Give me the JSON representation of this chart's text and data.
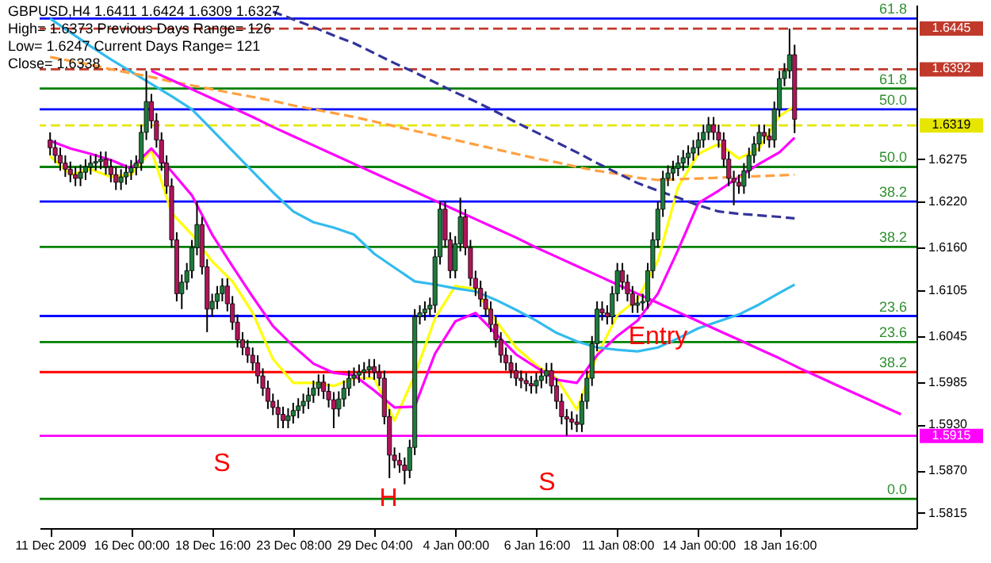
{
  "chart_data": {
    "type": "candlestick",
    "categories": [
      "11 Dec 2009",
      null,
      null,
      null,
      null,
      null,
      null,
      null,
      null,
      null,
      null,
      null,
      null,
      null,
      null,
      null,
      "16 Dec 00:00",
      null,
      null,
      null,
      null,
      null,
      null,
      null,
      null,
      null,
      null,
      null,
      null,
      null,
      null,
      null,
      "18 Dec 16:00",
      null,
      null,
      null,
      null,
      null,
      null,
      null,
      null,
      null,
      null,
      null,
      null,
      null,
      null,
      null,
      "23 Dec 08:00",
      null,
      null,
      null,
      null,
      null,
      null,
      null,
      null,
      null,
      null,
      null,
      null,
      null,
      null,
      null,
      "29 Dec 04:00",
      null,
      null,
      null,
      null,
      null,
      null,
      null,
      null,
      null,
      null,
      null,
      null,
      null,
      null,
      null,
      "4 Jan 00:00",
      null,
      null,
      null,
      null,
      null,
      null,
      null,
      null,
      null,
      null,
      null,
      null,
      null,
      null,
      null,
      "6 Jan 16:00",
      null,
      null,
      null,
      null,
      null,
      null,
      null,
      null,
      null,
      null,
      null,
      null,
      null,
      null,
      null,
      "11 Jan 08:00",
      null,
      null,
      null,
      null,
      null,
      null,
      null,
      null,
      null,
      null,
      null,
      null,
      null,
      null,
      null,
      "14 Jan 00:00",
      null,
      null,
      null,
      null,
      null,
      null,
      null,
      null,
      null,
      null,
      null,
      null,
      null,
      null,
      null,
      "18 Jan 16:00",
      null,
      null,
      null,
      null,
      null,
      null,
      null,
      null,
      null,
      null,
      null,
      null,
      null,
      null,
      null,
      null,
      null,
      null,
      null,
      null,
      null,
      null,
      null,
      null,
      null
    ],
    "ohlc": [
      [
        1.63,
        1.631,
        1.628,
        1.629
      ],
      [
        1.629,
        1.63,
        1.627,
        1.628
      ],
      [
        1.628,
        1.629,
        1.626,
        1.627
      ],
      [
        1.627,
        1.628,
        1.6252,
        1.6262
      ],
      [
        1.6262,
        1.6272,
        1.6245,
        1.6255
      ],
      [
        1.6255,
        1.6265,
        1.624,
        1.625
      ],
      [
        1.625,
        1.6268,
        1.624,
        1.6258
      ],
      [
        1.6258,
        1.6275,
        1.6248,
        1.6265
      ],
      [
        1.6265,
        1.628,
        1.6255,
        1.627
      ],
      [
        1.627,
        1.6282,
        1.626,
        1.6272
      ],
      [
        1.6272,
        1.6285,
        1.6262,
        1.6275
      ],
      [
        1.6275,
        1.6285,
        1.6255,
        1.6265
      ],
      [
        1.6265,
        1.6275,
        1.6245,
        1.6255
      ],
      [
        1.6255,
        1.6265,
        1.6235,
        1.6245
      ],
      [
        1.6245,
        1.6262,
        1.6235,
        1.6252
      ],
      [
        1.6252,
        1.6268,
        1.6242,
        1.6258
      ],
      [
        1.6258,
        1.6274,
        1.6248,
        1.6264
      ],
      [
        1.6264,
        1.628,
        1.6254,
        1.627
      ],
      [
        1.627,
        1.632,
        1.626,
        1.631
      ],
      [
        1.631,
        1.639,
        1.63,
        1.635
      ],
      [
        1.635,
        1.636,
        1.6315,
        1.6325
      ],
      [
        1.6325,
        1.6335,
        1.629,
        1.63
      ],
      [
        1.63,
        1.631,
        1.626,
        1.627
      ],
      [
        1.627,
        1.628,
        1.623,
        1.624
      ],
      [
        1.624,
        1.625,
        1.616,
        1.617
      ],
      [
        1.617,
        1.618,
        1.609,
        1.61
      ],
      [
        1.61,
        1.6125,
        1.608,
        1.6115
      ],
      [
        1.6115,
        1.614,
        1.6105,
        1.613
      ],
      [
        1.613,
        1.617,
        1.612,
        1.616
      ],
      [
        1.616,
        1.622,
        1.615,
        1.619
      ],
      [
        1.619,
        1.62,
        1.6125,
        1.6135
      ],
      [
        1.6135,
        1.6145,
        1.605,
        1.608
      ],
      [
        1.608,
        1.61,
        1.607,
        1.609
      ],
      [
        1.609,
        1.611,
        1.608,
        1.61
      ],
      [
        1.61,
        1.612,
        1.609,
        1.611
      ],
      [
        1.611,
        1.612,
        1.6077,
        1.6087
      ],
      [
        1.6087,
        1.6097,
        1.6053,
        1.6063
      ],
      [
        1.6063,
        1.6073,
        1.603,
        1.604
      ],
      [
        1.604,
        1.605,
        1.602,
        1.603
      ],
      [
        1.603,
        1.604,
        1.601,
        1.602
      ],
      [
        1.602,
        1.603,
        1.6,
        1.601
      ],
      [
        1.601,
        1.602,
        1.5983,
        1.5993
      ],
      [
        1.5993,
        1.6003,
        1.5967,
        1.5977
      ],
      [
        1.5977,
        1.5987,
        1.595,
        1.596
      ],
      [
        1.596,
        1.597,
        1.5942,
        1.5952
      ],
      [
        1.5952,
        1.5962,
        1.5925,
        1.5943
      ],
      [
        1.5943,
        1.5953,
        1.5925,
        1.5935
      ],
      [
        1.5935,
        1.5951,
        1.5925,
        1.5941
      ],
      [
        1.5941,
        1.5958,
        1.5931,
        1.5948
      ],
      [
        1.5948,
        1.5964,
        1.5938,
        1.5954
      ],
      [
        1.5954,
        1.597,
        1.5944,
        1.596
      ],
      [
        1.596,
        1.5978,
        1.595,
        1.5968
      ],
      [
        1.5968,
        1.5987,
        1.5958,
        1.5977
      ],
      [
        1.5977,
        1.5995,
        1.5967,
        1.5985
      ],
      [
        1.5985,
        1.5995,
        1.5963,
        1.5973
      ],
      [
        1.5973,
        1.5983,
        1.5952,
        1.5962
      ],
      [
        1.5962,
        1.5972,
        1.5925,
        1.595
      ],
      [
        1.595,
        1.5973,
        1.594,
        1.5963
      ],
      [
        1.5963,
        1.5987,
        1.5953,
        1.5977
      ],
      [
        1.5977,
        1.6,
        1.5967,
        1.599
      ],
      [
        1.599,
        1.6004,
        1.598,
        1.5994
      ],
      [
        1.5994,
        1.6008,
        1.5984,
        1.5998
      ],
      [
        1.5998,
        1.6011,
        1.5988,
        1.6001
      ],
      [
        1.6001,
        1.6015,
        1.5991,
        1.6005
      ],
      [
        1.6005,
        1.6015,
        1.5988,
        1.5998
      ],
      [
        1.5998,
        1.6008,
        1.598,
        1.599
      ],
      [
        1.599,
        1.6,
        1.593,
        1.594
      ],
      [
        1.594,
        1.595,
        1.586,
        1.589
      ],
      [
        1.589,
        1.59,
        1.5873,
        1.5883
      ],
      [
        1.5883,
        1.5893,
        1.5867,
        1.5877
      ],
      [
        1.5877,
        1.5887,
        1.5852,
        1.587
      ],
      [
        1.587,
        1.591,
        1.586,
        1.59
      ],
      [
        1.59,
        1.608,
        1.589,
        1.607
      ],
      [
        1.607,
        1.6085,
        1.606,
        1.6075
      ],
      [
        1.6075,
        1.609,
        1.6065,
        1.608
      ],
      [
        1.608,
        1.6095,
        1.607,
        1.6085
      ],
      [
        1.6085,
        1.6158,
        1.6075,
        1.6148
      ],
      [
        1.6148,
        1.622,
        1.6138,
        1.621
      ],
      [
        1.621,
        1.622,
        1.616,
        1.617
      ],
      [
        1.617,
        1.618,
        1.612,
        1.613
      ],
      [
        1.613,
        1.6175,
        1.612,
        1.6165
      ],
      [
        1.6165,
        1.6225,
        1.6155,
        1.62
      ],
      [
        1.62,
        1.621,
        1.615,
        1.616
      ],
      [
        1.616,
        1.617,
        1.611,
        1.612
      ],
      [
        1.612,
        1.613,
        1.6097,
        1.6107
      ],
      [
        1.6107,
        1.6117,
        1.6083,
        1.6093
      ],
      [
        1.6093,
        1.6103,
        1.607,
        1.608
      ],
      [
        1.608,
        1.609,
        1.605,
        1.606
      ],
      [
        1.606,
        1.607,
        1.603,
        1.604
      ],
      [
        1.604,
        1.605,
        1.601,
        1.602
      ],
      [
        1.602,
        1.603,
        1.6,
        1.601
      ],
      [
        1.601,
        1.602,
        1.599,
        1.6
      ],
      [
        1.6,
        1.601,
        1.598,
        1.599
      ],
      [
        1.599,
        1.6,
        1.5977,
        1.5987
      ],
      [
        1.5987,
        1.5997,
        1.5973,
        1.5983
      ],
      [
        1.5983,
        1.5993,
        1.597,
        1.598
      ],
      [
        1.598,
        1.5997,
        1.597,
        1.5987
      ],
      [
        1.5987,
        1.6003,
        1.5977,
        1.5993
      ],
      [
        1.5993,
        1.601,
        1.5983,
        1.6
      ],
      [
        1.6,
        1.601,
        1.597,
        1.598
      ],
      [
        1.598,
        1.599,
        1.595,
        1.596
      ],
      [
        1.596,
        1.597,
        1.593,
        1.594
      ],
      [
        1.594,
        1.595,
        1.5915,
        1.5937
      ],
      [
        1.5937,
        1.5947,
        1.5923,
        1.5933
      ],
      [
        1.5933,
        1.5943,
        1.592,
        1.593
      ],
      [
        1.593,
        1.597,
        1.592,
        1.596
      ],
      [
        1.596,
        1.6,
        1.595,
        1.599
      ],
      [
        1.599,
        1.6045,
        1.598,
        1.6035
      ],
      [
        1.6035,
        1.609,
        1.6025,
        1.608
      ],
      [
        1.608,
        1.609,
        1.6065,
        1.6075
      ],
      [
        1.6075,
        1.6085,
        1.606,
        1.607
      ],
      [
        1.607,
        1.611,
        1.606,
        1.61
      ],
      [
        1.61,
        1.614,
        1.609,
        1.613
      ],
      [
        1.613,
        1.614,
        1.6105,
        1.6115
      ],
      [
        1.6115,
        1.6125,
        1.609,
        1.61
      ],
      [
        1.61,
        1.611,
        1.6075,
        1.6085
      ],
      [
        1.6085,
        1.6098,
        1.6075,
        1.6088
      ],
      [
        1.6088,
        1.61,
        1.6078,
        1.609
      ],
      [
        1.609,
        1.614,
        1.608,
        1.613
      ],
      [
        1.613,
        1.618,
        1.612,
        1.617
      ],
      [
        1.617,
        1.622,
        1.616,
        1.621
      ],
      [
        1.621,
        1.626,
        1.62,
        1.625
      ],
      [
        1.625,
        1.6267,
        1.624,
        1.6257
      ],
      [
        1.6257,
        1.6273,
        1.6247,
        1.6263
      ],
      [
        1.6263,
        1.628,
        1.6253,
        1.627
      ],
      [
        1.627,
        1.6287,
        1.626,
        1.6277
      ],
      [
        1.6277,
        1.6293,
        1.6267,
        1.6283
      ],
      [
        1.6283,
        1.63,
        1.6273,
        1.629
      ],
      [
        1.629,
        1.631,
        1.628,
        1.63
      ],
      [
        1.63,
        1.632,
        1.629,
        1.631
      ],
      [
        1.631,
        1.633,
        1.63,
        1.632
      ],
      [
        1.632,
        1.633,
        1.63,
        1.631
      ],
      [
        1.631,
        1.632,
        1.629,
        1.63
      ],
      [
        1.63,
        1.631,
        1.6265,
        1.6275
      ],
      [
        1.6275,
        1.6285,
        1.624,
        1.625
      ],
      [
        1.625,
        1.626,
        1.6215,
        1.6245
      ],
      [
        1.6245,
        1.6255,
        1.623,
        1.624
      ],
      [
        1.624,
        1.627,
        1.623,
        1.626
      ],
      [
        1.626,
        1.629,
        1.625,
        1.628
      ],
      [
        1.628,
        1.6305,
        1.627,
        1.6295
      ],
      [
        1.6295,
        1.632,
        1.6285,
        1.631
      ],
      [
        1.631,
        1.632,
        1.6295,
        1.6305
      ],
      [
        1.6305,
        1.6315,
        1.629,
        1.63
      ],
      [
        1.63,
        1.635,
        1.629,
        1.634
      ],
      [
        1.634,
        1.639,
        1.633,
        1.638
      ],
      [
        1.638,
        1.64,
        1.637,
        1.639
      ],
      [
        1.639,
        1.6445,
        1.638,
        1.6411
      ],
      [
        1.6411,
        1.6424,
        1.6309,
        1.6327
      ],
      null,
      null,
      null,
      null,
      null,
      null,
      null,
      null,
      null,
      null,
      null,
      null,
      null,
      null,
      null,
      null,
      null,
      null,
      null,
      null,
      null,
      null
    ],
    "series": [
      {
        "type": "line",
        "color": "#ffff00",
        "values": [
          1.6279,
          null,
          null,
          null,
          1.6255,
          null,
          null,
          null,
          1.6262,
          null,
          null,
          null,
          1.6252,
          null,
          null,
          null,
          1.6255,
          null,
          null,
          null,
          1.6287,
          null,
          null,
          null,
          1.6205,
          null,
          null,
          null,
          1.6177,
          null,
          null,
          null,
          1.6142,
          null,
          null,
          null,
          1.6116,
          null,
          null,
          null,
          1.6075,
          null,
          null,
          null,
          1.6015,
          null,
          null,
          null,
          1.5984,
          null,
          null,
          null,
          1.5984,
          null,
          null,
          null,
          1.598,
          null,
          null,
          null,
          1.599,
          null,
          null,
          null,
          1.599,
          null,
          null,
          null,
          1.5935,
          null,
          null,
          null,
          1.5994,
          null,
          null,
          null,
          1.6068,
          null,
          null,
          null,
          1.611,
          null,
          null,
          null,
          1.6106,
          null,
          null,
          null,
          1.6065,
          null,
          null,
          null,
          1.603,
          null,
          null,
          null,
          1.6007,
          null,
          null,
          null,
          1.599,
          null,
          null,
          null,
          1.5949,
          null,
          null,
          null,
          1.602,
          null,
          null,
          null,
          1.6072,
          null,
          null,
          null,
          1.6093,
          null,
          null,
          null,
          1.6143,
          null,
          null,
          null,
          1.6239,
          null,
          null,
          null,
          1.6282,
          null,
          null,
          null,
          1.6295,
          null,
          null,
          null,
          1.6276,
          null,
          null,
          null,
          1.6289,
          null,
          null,
          null,
          1.6331,
          null,
          null,
          1.6344,
          null,
          null,
          null,
          null,
          null,
          null,
          null,
          null,
          null,
          null,
          null,
          null,
          null,
          null,
          null,
          null,
          null,
          null,
          null,
          null,
          null,
          null
        ]
      },
      {
        "type": "line",
        "color": "#ff00ff",
        "values": [
          1.6299,
          null,
          null,
          null,
          1.6289,
          null,
          null,
          null,
          1.6282,
          null,
          null,
          null,
          1.6274,
          null,
          null,
          null,
          1.6263,
          null,
          null,
          null,
          1.6289,
          null,
          null,
          null,
          1.6259,
          null,
          null,
          null,
          1.6228,
          null,
          null,
          null,
          1.6177,
          null,
          null,
          null,
          1.6136,
          null,
          null,
          null,
          1.6096,
          null,
          null,
          null,
          1.6058,
          null,
          null,
          null,
          1.6032,
          null,
          null,
          null,
          1.6009,
          null,
          null,
          null,
          1.5997,
          null,
          null,
          null,
          1.5994,
          null,
          null,
          null,
          1.5974,
          null,
          null,
          null,
          1.5952,
          null,
          null,
          null,
          1.5953,
          null,
          null,
          null,
          1.6022,
          null,
          null,
          null,
          1.6064,
          null,
          null,
          null,
          1.6075,
          null,
          null,
          null,
          1.6048,
          null,
          null,
          null,
          1.6021,
          null,
          null,
          null,
          1.6004,
          null,
          null,
          null,
          1.5988,
          null,
          null,
          null,
          1.5984,
          null,
          null,
          null,
          1.602,
          null,
          null,
          null,
          1.6045,
          null,
          null,
          null,
          1.6065,
          null,
          null,
          null,
          1.61,
          null,
          null,
          null,
          1.6157,
          null,
          null,
          null,
          1.6218,
          null,
          null,
          null,
          1.6234,
          null,
          null,
          null,
          1.6252,
          null,
          null,
          null,
          1.6269,
          null,
          null,
          null,
          1.6284,
          null,
          null,
          1.6303,
          null,
          null,
          null,
          null,
          null,
          null,
          null,
          null,
          null,
          null,
          null,
          null,
          null,
          null,
          null,
          null,
          null,
          null,
          null,
          null,
          null,
          null
        ]
      },
      {
        "type": "line",
        "color": "#33bbee",
        "values": [
          1.6458,
          null,
          null,
          null,
          1.644,
          null,
          null,
          null,
          1.6422,
          null,
          null,
          null,
          1.6405,
          null,
          null,
          null,
          1.6389,
          null,
          null,
          null,
          1.6373,
          null,
          null,
          null,
          1.6357,
          null,
          null,
          null,
          1.634,
          null,
          null,
          null,
          1.6313,
          null,
          null,
          null,
          1.6286,
          null,
          null,
          null,
          1.6259,
          null,
          null,
          null,
          1.6232,
          null,
          null,
          null,
          1.6207,
          null,
          null,
          null,
          1.6193,
          null,
          null,
          null,
          1.6186,
          null,
          null,
          null,
          1.6177,
          null,
          null,
          null,
          1.6152,
          null,
          null,
          null,
          1.6134,
          null,
          null,
          null,
          1.6116,
          null,
          null,
          null,
          1.6112,
          null,
          null,
          null,
          1.6107,
          null,
          null,
          null,
          1.6103,
          null,
          null,
          null,
          1.6092,
          null,
          null,
          null,
          1.6079,
          null,
          null,
          null,
          1.6065,
          null,
          null,
          null,
          1.6049,
          null,
          null,
          null,
          1.6038,
          null,
          null,
          null,
          1.603,
          null,
          null,
          null,
          1.6027,
          null,
          null,
          null,
          1.6025,
          null,
          null,
          null,
          1.603,
          null,
          null,
          null,
          1.6042,
          null,
          null,
          null,
          1.6055,
          null,
          null,
          null,
          1.6064,
          null,
          null,
          null,
          1.6073,
          null,
          null,
          null,
          1.6086,
          null,
          null,
          null,
          1.6101,
          null,
          null,
          1.6112,
          null,
          null,
          null,
          null,
          null,
          null,
          null,
          null,
          null,
          null,
          null,
          null,
          null,
          null,
          null,
          null,
          null,
          null,
          null,
          null,
          null,
          null
        ]
      },
      {
        "type": "line",
        "color": "#ffa040",
        "line_style": "dashed",
        "values": [
          1.6408,
          null,
          null,
          null,
          1.6403,
          null,
          null,
          null,
          1.6398,
          null,
          null,
          null,
          1.6392,
          null,
          null,
          null,
          1.6387,
          null,
          null,
          null,
          1.6382,
          null,
          null,
          null,
          1.6376,
          null,
          null,
          null,
          1.6371,
          null,
          null,
          null,
          1.6366,
          null,
          null,
          null,
          1.6361,
          null,
          null,
          null,
          1.6356,
          null,
          null,
          null,
          1.6351,
          null,
          null,
          null,
          1.6345,
          null,
          null,
          null,
          1.634,
          null,
          null,
          null,
          1.6335,
          null,
          null,
          null,
          1.633,
          null,
          null,
          null,
          1.6324,
          null,
          null,
          null,
          1.6318,
          null,
          null,
          null,
          1.6312,
          null,
          null,
          null,
          1.6306,
          null,
          null,
          null,
          1.63,
          null,
          null,
          null,
          1.6294,
          null,
          null,
          null,
          1.6288,
          null,
          null,
          null,
          1.6282,
          null,
          null,
          null,
          1.6276,
          null,
          null,
          null,
          1.6271,
          null,
          null,
          null,
          1.6265,
          null,
          null,
          null,
          1.626,
          null,
          null,
          null,
          1.6256,
          null,
          null,
          null,
          1.6251,
          null,
          null,
          null,
          1.6248,
          null,
          null,
          null,
          1.6249,
          null,
          null,
          null,
          1.625,
          null,
          null,
          null,
          1.6251,
          null,
          null,
          null,
          1.6252,
          null,
          null,
          null,
          1.6253,
          null,
          null,
          null,
          1.6254,
          null,
          null,
          1.6255,
          null,
          null,
          null,
          null,
          null,
          null,
          null,
          null,
          null,
          null,
          null,
          null,
          null,
          null,
          null,
          null,
          null,
          null,
          null,
          null,
          null,
          null
        ]
      },
      {
        "type": "line",
        "color": "#333399",
        "line_style": "dashed",
        "values": [
          null,
          null,
          null,
          null,
          null,
          null,
          null,
          null,
          null,
          null,
          null,
          null,
          null,
          null,
          null,
          null,
          null,
          null,
          null,
          null,
          null,
          null,
          null,
          null,
          null,
          null,
          null,
          null,
          null,
          null,
          null,
          null,
          null,
          null,
          null,
          null,
          null,
          null,
          null,
          null,
          null,
          null,
          null,
          null,
          1.6467,
          null,
          null,
          null,
          1.6457,
          null,
          null,
          null,
          1.6447,
          null,
          null,
          null,
          1.6436,
          null,
          null,
          null,
          1.6426,
          null,
          null,
          null,
          1.6413,
          null,
          null,
          null,
          1.64,
          null,
          null,
          null,
          1.6388,
          null,
          null,
          null,
          1.6375,
          null,
          null,
          null,
          1.6362,
          null,
          null,
          null,
          1.635,
          null,
          null,
          null,
          1.6337,
          null,
          null,
          null,
          1.6323,
          null,
          null,
          null,
          1.631,
          null,
          null,
          null,
          1.6297,
          null,
          null,
          null,
          1.6284,
          null,
          null,
          null,
          1.627,
          null,
          null,
          null,
          1.6257,
          null,
          null,
          null,
          1.6244,
          null,
          null,
          null,
          1.6234,
          null,
          null,
          null,
          1.6225,
          null,
          null,
          null,
          1.6215,
          null,
          null,
          null,
          1.6207,
          null,
          null,
          null,
          1.6204,
          null,
          null,
          null,
          1.6202,
          null,
          null,
          null,
          1.62,
          null,
          null,
          1.6198,
          null,
          null,
          null,
          null,
          null,
          null,
          null,
          null,
          null,
          null,
          null,
          null,
          null,
          null,
          null,
          null,
          null,
          null,
          null,
          null,
          null,
          null
        ]
      },
      {
        "type": "line",
        "color": "#ff00ff",
        "values": [
          null,
          null,
          null,
          null,
          null,
          null,
          null,
          null,
          null,
          null,
          null,
          null,
          null,
          null,
          null,
          null,
          null,
          null,
          null,
          null,
          1.639,
          null,
          null,
          null,
          1.6378,
          null,
          null,
          null,
          1.6366,
          null,
          null,
          null,
          1.6354,
          null,
          null,
          null,
          1.6342,
          null,
          null,
          null,
          1.633,
          null,
          null,
          null,
          1.6317,
          null,
          null,
          null,
          1.6305,
          null,
          null,
          null,
          1.6293,
          null,
          null,
          null,
          1.6281,
          null,
          null,
          null,
          1.6269,
          null,
          null,
          null,
          1.6257,
          null,
          null,
          null,
          1.6245,
          null,
          null,
          null,
          1.6233,
          null,
          null,
          null,
          1.6221,
          null,
          null,
          null,
          1.6209,
          null,
          null,
          null,
          1.6197,
          null,
          null,
          null,
          1.6185,
          null,
          null,
          null,
          1.6173,
          null,
          null,
          null,
          1.616,
          null,
          null,
          null,
          1.6148,
          null,
          null,
          null,
          1.6136,
          null,
          null,
          null,
          1.6124,
          null,
          null,
          null,
          1.6112,
          null,
          null,
          null,
          1.61,
          null,
          null,
          null,
          1.6088,
          null,
          null,
          null,
          1.6076,
          null,
          null,
          null,
          1.6064,
          null,
          null,
          null,
          1.6052,
          null,
          null,
          null,
          1.604,
          null,
          null,
          null,
          1.6028,
          null,
          null,
          null,
          1.6016,
          null,
          null,
          null,
          1.6003,
          null,
          null,
          null,
          1.5991,
          null,
          null,
          null,
          1.5979,
          null,
          null,
          null,
          1.5967,
          null,
          null,
          null,
          1.5955,
          null,
          null,
          null,
          1.5943,
          null
        ]
      }
    ],
    "ylim": [
      1.5795,
      1.6476
    ],
    "yticks": [
      {
        "value": 1.5815,
        "label": "1.5815"
      },
      {
        "value": 1.587,
        "label": "1.5870"
      },
      {
        "value": 1.593,
        "label": "1.5930"
      },
      {
        "value": 1.5985,
        "label": "1.5985"
      },
      {
        "value": 1.6045,
        "label": "1.6045"
      },
      {
        "value": 1.6105,
        "label": "1.6105"
      },
      {
        "value": 1.616,
        "label": "1.6160"
      },
      {
        "value": 1.622,
        "label": "1.6220"
      },
      {
        "value": 1.6275,
        "label": "1.6275"
      }
    ],
    "grid": false,
    "ref_lines": [
      {
        "axis": "y",
        "value": 1.6458,
        "color": "#0000ff",
        "line_style": "solid"
      },
      {
        "axis": "y",
        "value": 1.6445,
        "label": "1.6445",
        "color": "#c0392b",
        "line_style": "dashed"
      },
      {
        "axis": "y",
        "value": 1.6392,
        "label": "1.6392",
        "color": "#c0392b",
        "line_style": "dashed"
      },
      {
        "axis": "y",
        "value": 1.6367,
        "color": "#008000",
        "line_style": "solid"
      },
      {
        "axis": "y",
        "value": 1.634,
        "color": "#0000ff",
        "line_style": "solid"
      },
      {
        "axis": "y",
        "value": 1.6319,
        "label": "1.6319",
        "color": "#e6e600",
        "line_style": "dashed"
      },
      {
        "axis": "y",
        "value": 1.6265,
        "color": "#008000",
        "line_style": "solid"
      },
      {
        "axis": "y",
        "value": 1.622,
        "color": "#0000ff",
        "line_style": "solid"
      },
      {
        "axis": "y",
        "value": 1.6161,
        "color": "#008000",
        "line_style": "solid"
      },
      {
        "axis": "y",
        "value": 1.6071,
        "color": "#0000ff",
        "line_style": "solid"
      },
      {
        "axis": "y",
        "value": 1.6037,
        "color": "#008000",
        "line_style": "solid"
      },
      {
        "axis": "y",
        "value": 1.5998,
        "color": "#ff0000",
        "line_style": "solid"
      },
      {
        "axis": "y",
        "value": 1.5915,
        "label": "1.5915",
        "color": "#ff00ff",
        "line_style": "solid"
      },
      {
        "axis": "y",
        "value": 1.5833,
        "color": "#008000",
        "line_style": "solid"
      }
    ],
    "annotations": [
      "GBPUSD,H4  1.6411 1.6424 1.6309 1.6327",
      "High= 1.6373    Previous Days Range= 126",
      "Low= 1.6247    Current Days Range= 121",
      "Close= 1.6338",
      "S",
      "H",
      "S",
      "Entry",
      {
        "text": "61.8",
        "y": 1.6458
      },
      {
        "text": "61.8",
        "y": 1.6367
      },
      {
        "text": "50.0",
        "y": 1.634
      },
      {
        "text": "50.0",
        "y": 1.6265
      },
      {
        "text": "38.2",
        "y": 1.622
      },
      {
        "text": "38.2",
        "y": 1.6161
      },
      {
        "text": "23.6",
        "y": 1.6071
      },
      {
        "text": "23.6",
        "y": 1.6037
      },
      {
        "text": "38.2",
        "y": 1.5998
      },
      {
        "text": "0.0",
        "y": 1.5833
      }
    ]
  }
}
